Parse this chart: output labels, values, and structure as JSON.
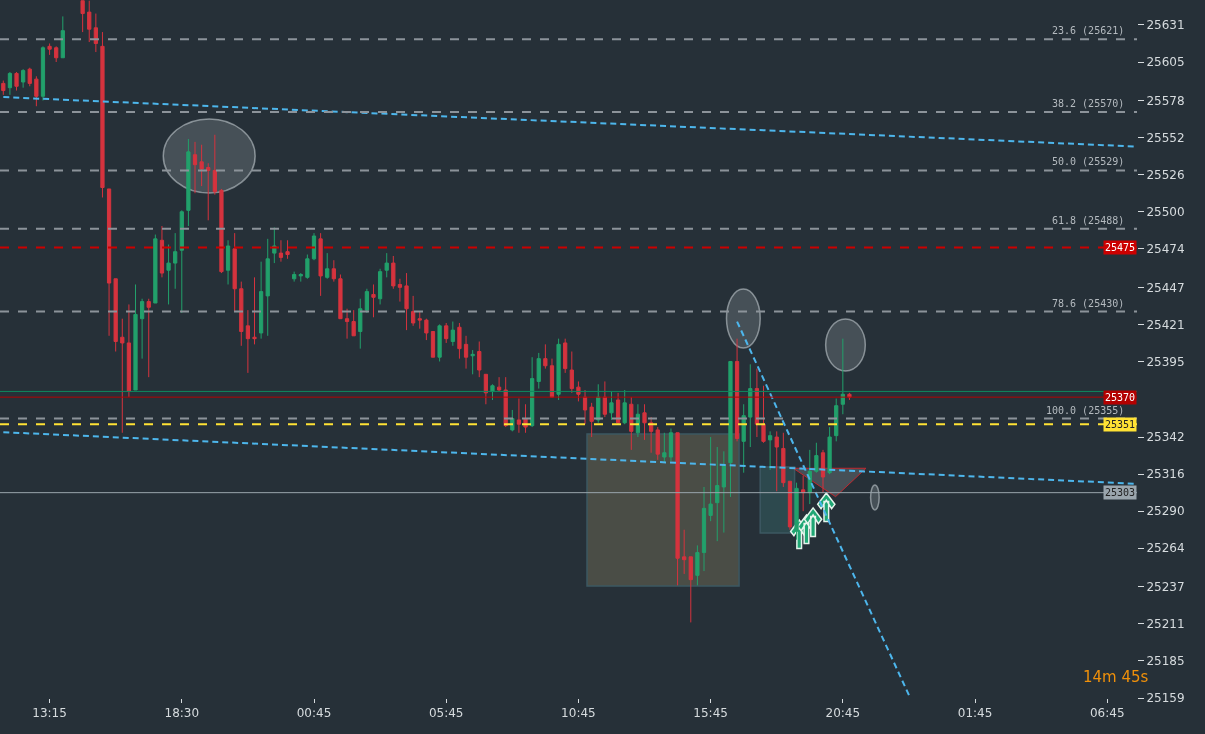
{
  "chart_data": {
    "type": "candlestick",
    "categories": [
      null,
      null,
      null,
      null,
      null,
      null,
      null,
      "13:15",
      null,
      null,
      null,
      null,
      null,
      null,
      null,
      null,
      null,
      null,
      null,
      null,
      null,
      null,
      null,
      null,
      null,
      null,
      null,
      "18:30",
      null,
      null,
      null,
      null,
      null,
      null,
      null,
      null,
      null,
      null,
      null,
      null,
      null,
      null,
      null,
      null,
      null,
      null,
      null,
      "00:45",
      null,
      null,
      null,
      null,
      null,
      null,
      null,
      null,
      null,
      null,
      null,
      null,
      null,
      null,
      null,
      null,
      null,
      null,
      null,
      "05:45",
      null,
      null,
      null,
      null,
      null,
      null,
      null,
      null,
      null,
      null,
      null,
      null,
      null,
      null,
      null,
      null,
      null,
      null,
      null,
      "10:45",
      null,
      null,
      null,
      null,
      null,
      null,
      null,
      null,
      null,
      null,
      null,
      null,
      null,
      null,
      null,
      null,
      null,
      null,
      null,
      "15:45",
      null,
      null,
      null,
      null,
      null,
      null,
      null,
      null,
      null,
      null,
      null,
      null,
      null,
      null,
      null,
      null,
      null,
      null,
      null,
      "20:45",
      null,
      null,
      null,
      null,
      null,
      null,
      null,
      null,
      null,
      null,
      null,
      null,
      null,
      null,
      null,
      null,
      null,
      null,
      null,
      "01:45",
      null,
      null,
      null,
      null,
      null,
      null,
      null,
      null,
      null,
      null,
      null,
      null,
      null,
      null,
      null,
      null,
      null,
      null,
      null,
      "06:45",
      null,
      null,
      null,
      null
    ],
    "ohlc": [
      [
        25590,
        25592,
        25582,
        25585
      ],
      [
        25587,
        25598,
        25582,
        25597
      ],
      [
        25597,
        25598,
        25585,
        25588
      ],
      [
        25591,
        25600,
        25587,
        25599
      ],
      [
        25600,
        25601,
        25588,
        25590
      ],
      [
        25593,
        25595,
        25574,
        25581
      ],
      [
        25581,
        25616,
        25578,
        25615
      ],
      [
        25616,
        25618,
        25610,
        25614
      ],
      [
        25615,
        25616,
        25605,
        25608
      ],
      [
        25608,
        25637,
        25608,
        25627
      ],
      null,
      null,
      [
        25648,
        25648,
        25626,
        25639
      ],
      [
        25640,
        25648,
        25619,
        25628
      ],
      [
        25629,
        25639,
        25612,
        25618
      ],
      [
        25616,
        25626,
        25510,
        25517
      ],
      [
        25516,
        25516,
        25413,
        25450
      ],
      [
        25453,
        25453,
        25402,
        25409
      ],
      [
        25412,
        25425,
        25345,
        25408
      ],
      [
        25408,
        25435,
        25370,
        25374
      ],
      [
        25375,
        25449,
        25375,
        25428
      ],
      [
        25425,
        25439,
        25397,
        25437
      ],
      [
        25437,
        25439,
        25384,
        25433
      ],
      [
        25436,
        25484,
        25436,
        25481
      ],
      [
        25480,
        25490,
        25454,
        25457
      ],
      [
        25459,
        25477,
        25435,
        25464
      ],
      [
        25464,
        25485,
        25446,
        25472
      ],
      [
        25473,
        25501,
        25429,
        25500
      ],
      [
        25501,
        25551,
        25490,
        25542
      ],
      [
        25540,
        25549,
        25513,
        25533
      ],
      [
        25535,
        25547,
        25518,
        25530
      ],
      [
        25531,
        25534,
        25494,
        25529
      ],
      [
        25529,
        25554,
        25512,
        25514
      ],
      [
        25515,
        25516,
        25457,
        25458
      ],
      [
        25459,
        25480,
        25449,
        25476
      ],
      [
        25474,
        25485,
        25430,
        25446
      ],
      [
        25446,
        25451,
        25406,
        25416
      ],
      [
        25420,
        25431,
        25387,
        25411
      ],
      [
        25412,
        25454,
        25407,
        25411
      ],
      [
        25415,
        25465,
        25411,
        25444
      ],
      [
        25441,
        25481,
        25413,
        25467
      ],
      [
        25471,
        25489,
        25464,
        25476
      ],
      [
        25471,
        25480,
        25465,
        25468
      ],
      [
        25472,
        25480,
        25467,
        25470
      ],
      [
        25453,
        25458,
        25451,
        25456
      ],
      [
        25455,
        25457,
        25451,
        25456
      ],
      [
        25454,
        25470,
        25453,
        25467
      ],
      [
        25467,
        25485,
        25466,
        25483
      ],
      [
        25481,
        25485,
        25441,
        25455
      ],
      [
        25454,
        25471,
        25453,
        25460
      ],
      [
        25460,
        25466,
        25451,
        25453
      ],
      [
        25453,
        25456,
        25425,
        25425
      ],
      [
        25425,
        25432,
        25411,
        25423
      ],
      [
        25423,
        25431,
        25413,
        25413
      ],
      [
        25416,
        25439,
        25404,
        25432
      ],
      [
        25431,
        25446,
        25429,
        25444
      ],
      [
        25442,
        25449,
        25426,
        25440
      ],
      [
        25439,
        25460,
        25435,
        25458
      ],
      [
        25459,
        25471,
        25454,
        25464
      ],
      [
        25464,
        25469,
        25446,
        25448
      ],
      [
        25449,
        25453,
        25437,
        25447
      ],
      [
        25448,
        25457,
        25417,
        25432
      ],
      [
        25430,
        25441,
        25420,
        25422
      ],
      [
        25425,
        25430,
        25418,
        25424
      ],
      [
        25424,
        25425,
        25410,
        25415
      ],
      [
        25416,
        25416,
        25398,
        25398
      ],
      [
        25398,
        25421,
        25395,
        25420
      ],
      [
        25420,
        25422,
        25408,
        25411
      ],
      [
        25409,
        25423,
        25406,
        25417
      ],
      [
        25419,
        25422,
        25397,
        25404
      ],
      [
        25407,
        25413,
        25390,
        25398
      ],
      [
        25399,
        25403,
        25386,
        25400
      ],
      [
        25402,
        25409,
        25384,
        25389
      ],
      [
        25386,
        25386,
        25365,
        25373
      ],
      [
        25374,
        25379,
        25368,
        25378
      ],
      [
        25377,
        25384,
        25374,
        25375
      ],
      [
        25375,
        25384,
        25349,
        25350
      ],
      [
        25347,
        25361,
        25346,
        25355
      ],
      [
        25354,
        25369,
        25345,
        25351
      ],
      [
        25355,
        25365,
        25345,
        25349
      ],
      [
        25350,
        25398,
        25349,
        25383
      ],
      [
        25381,
        25401,
        25376,
        25397
      ],
      [
        25397,
        25407,
        25390,
        25392
      ],
      [
        25392,
        25397,
        25370,
        25370
      ],
      [
        25372,
        25411,
        25368,
        25407
      ],
      [
        25408,
        25411,
        25387,
        25390
      ],
      [
        25389,
        25402,
        25373,
        25376
      ],
      [
        25377,
        25381,
        25367,
        25372
      ],
      [
        25370,
        25375,
        25351,
        25361
      ],
      [
        25363,
        25366,
        25342,
        25353
      ],
      [
        25354,
        25379,
        25352,
        25370
      ],
      [
        25370,
        25381,
        25356,
        25358
      ],
      [
        25359,
        25374,
        25354,
        25366
      ],
      [
        25368,
        25373,
        25351,
        25352
      ],
      [
        25352,
        25375,
        25351,
        25366
      ],
      [
        25365,
        25370,
        25333,
        25346
      ],
      [
        25345,
        25365,
        25342,
        25358
      ],
      [
        25359,
        25365,
        25340,
        25352
      ],
      [
        25352,
        25356,
        25331,
        25346
      ],
      [
        25347,
        25349,
        25326,
        25330
      ],
      [
        25328,
        25345,
        25324,
        25331
      ],
      [
        25328,
        25348,
        25325,
        25345
      ],
      [
        25345,
        25345,
        25238,
        25257
      ],
      [
        25258,
        25277,
        25246,
        25256
      ],
      [
        25258,
        25258,
        25212,
        25242
      ],
      [
        25245,
        25266,
        25238,
        25261
      ],
      [
        25261,
        25307,
        25248,
        25292
      ],
      [
        25287,
        25342,
        25283,
        25295
      ],
      [
        25296,
        25335,
        25269,
        25308
      ],
      [
        25307,
        25332,
        25275,
        25322
      ],
      [
        25324,
        25395,
        25300,
        25395
      ],
      [
        25395,
        25411,
        25339,
        25341
      ],
      [
        25339,
        25365,
        25317,
        25357
      ],
      [
        25356,
        25393,
        25335,
        25376
      ],
      [
        25376,
        25390,
        25342,
        25351
      ],
      [
        25351,
        25378,
        25338,
        25339
      ],
      [
        25340,
        25346,
        25319,
        25343
      ],
      [
        25342,
        25346,
        25304,
        25335
      ],
      [
        25334,
        25345,
        25307,
        25310
      ],
      [
        25311,
        25311,
        25277,
        25279
      ],
      [
        25276,
        25310,
        25270,
        25306
      ],
      [
        25305,
        25315,
        25290,
        25303
      ],
      [
        25303,
        25333,
        25295,
        25318
      ],
      [
        25318,
        25338,
        25317,
        25329
      ],
      [
        25331,
        25333,
        25303,
        25314
      ],
      [
        25317,
        25349,
        25316,
        25342
      ],
      [
        25343,
        25369,
        25339,
        25364
      ],
      [
        25365,
        25411,
        25358,
        25372
      ],
      [
        25372,
        25373,
        25368,
        25370
      ],
      null,
      null,
      null,
      null,
      null,
      null,
      null,
      null,
      null,
      null,
      null,
      null,
      null,
      null,
      null,
      null,
      null,
      null,
      null,
      null,
      null,
      null,
      null,
      null,
      null,
      null,
      null,
      null,
      null,
      null,
      null,
      null,
      null,
      null,
      null,
      null,
      null,
      null,
      null,
      null,
      null,
      null,
      null
    ],
    "colors": [
      "#d5333e",
      "#22a06b",
      "#d5333e",
      "#22a06b",
      "#d5333e",
      "#d5333e",
      "#22a06b",
      "#d5333e",
      "#d5333e",
      "#22a06b",
      null,
      null,
      "#d5333e",
      "#d5333e",
      "#d5333e",
      "#d5333e",
      "#d5333e",
      "#d5333e",
      "#d5333e",
      "#d5333e",
      "#22a06b",
      "#22a06b",
      "#d5333e",
      "#22a06b",
      "#d5333e",
      "#22a06b",
      "#22a06b",
      "#22a06b",
      "#22a06b",
      "#d5333e",
      "#d5333e",
      "#d5333e",
      "#d5333e",
      "#d5333e",
      "#22a06b",
      "#d5333e",
      "#d5333e",
      "#d5333e",
      "#d5333e",
      "#22a06b",
      "#22a06b",
      "#22a06b",
      "#d5333e",
      "#d5333e",
      "#22a06b",
      "#22a06b",
      "#22a06b",
      "#22a06b",
      "#d5333e",
      "#22a06b",
      "#d5333e",
      "#d5333e",
      "#d5333e",
      "#d5333e",
      "#22a06b",
      "#22a06b",
      "#d5333e",
      "#22a06b",
      "#22a06b",
      "#d5333e",
      "#d5333e",
      "#d5333e",
      "#d5333e",
      "#d5333e",
      "#d5333e",
      "#d5333e",
      "#22a06b",
      "#d5333e",
      "#22a06b",
      "#d5333e",
      "#d5333e",
      "#22a06b",
      "#d5333e",
      "#d5333e",
      "#22a06b",
      "#d5333e",
      "#d5333e",
      "#22a06b",
      "#d5333e",
      "#d5333e",
      "#22a06b",
      "#22a06b",
      "#d5333e",
      "#d5333e",
      "#22a06b",
      "#d5333e",
      "#d5333e",
      "#d5333e",
      "#d5333e",
      "#d5333e",
      "#22a06b",
      "#d5333e",
      "#22a06b",
      "#d5333e",
      "#22a06b",
      "#d5333e",
      "#22a06b",
      "#d5333e",
      "#d5333e",
      "#d5333e",
      "#22a06b",
      "#22a06b",
      "#d5333e",
      "#d5333e",
      "#d5333e",
      "#22a06b",
      "#22a06b",
      "#22a06b",
      "#22a06b",
      "#22a06b",
      "#22a06b",
      "#d5333e",
      "#22a06b",
      "#22a06b",
      "#d5333e",
      "#d5333e",
      "#22a06b",
      "#d5333e",
      "#d5333e",
      "#d5333e",
      "#22a06b",
      "#d5333e",
      "#22a06b",
      "#22a06b",
      "#d5333e",
      "#22a06b",
      "#22a06b",
      "#22a06b",
      "#d5333e",
      null,
      null,
      null,
      null,
      null,
      null,
      null,
      null,
      null,
      null,
      null,
      null,
      null,
      null,
      null,
      null,
      null,
      null,
      null,
      null,
      null,
      null,
      null,
      null,
      null,
      null,
      null,
      null,
      null,
      null,
      null,
      null,
      null,
      null,
      null,
      null,
      null,
      null,
      null,
      null,
      null,
      null,
      null
    ],
    "series": [
      {
        "type": "line",
        "color": "#4db6ec",
        "line_style": "dashed",
        "values": [
          25580.4,
          null,
          null,
          null,
          null,
          null,
          null,
          null,
          null,
          null,
          null,
          null,
          null,
          null,
          null,
          null,
          null,
          null,
          null,
          null,
          null,
          null,
          null,
          null,
          null,
          null,
          null,
          null,
          null,
          null,
          null,
          null,
          null,
          null,
          null,
          null,
          null,
          null,
          null,
          null,
          null,
          null,
          null,
          null,
          null,
          null,
          null,
          null,
          null,
          null,
          null,
          null,
          null,
          null,
          null,
          null,
          null,
          null,
          null,
          null,
          null,
          null,
          null,
          null,
          null,
          null,
          null,
          null,
          null,
          null,
          null,
          null,
          null,
          null,
          null,
          null,
          null,
          null,
          null,
          null,
          null,
          null,
          null,
          null,
          null,
          null,
          null,
          null,
          null,
          null,
          null,
          null,
          null,
          null,
          null,
          null,
          null,
          null,
          null,
          null,
          null,
          null,
          null,
          null,
          null,
          null,
          null,
          null,
          null,
          null,
          null,
          null,
          null,
          null,
          null,
          null,
          null,
          null,
          null,
          null,
          null,
          null,
          null,
          null,
          null,
          null,
          null,
          null,
          null,
          null,
          null,
          null,
          null,
          null,
          null,
          null,
          null,
          null,
          null,
          null,
          null,
          null,
          null,
          null,
          null,
          null,
          null,
          null,
          null,
          null,
          null,
          null,
          null,
          null,
          null,
          null,
          null,
          null,
          null,
          null,
          null,
          null,
          null,
          null,
          null,
          null,
          null,
          null,
          null,
          null,
          null,
          25545.8
        ]
      },
      {
        "type": "line",
        "color": "#4db6ec",
        "line_style": "dashed",
        "values": [
          25345.4,
          null,
          null,
          null,
          null,
          null,
          null,
          null,
          null,
          null,
          null,
          null,
          null,
          null,
          null,
          null,
          null,
          null,
          null,
          null,
          null,
          null,
          null,
          null,
          null,
          null,
          null,
          null,
          null,
          null,
          null,
          null,
          null,
          null,
          null,
          null,
          null,
          null,
          null,
          null,
          null,
          null,
          null,
          null,
          null,
          null,
          null,
          null,
          null,
          null,
          null,
          null,
          null,
          null,
          null,
          null,
          null,
          null,
          null,
          null,
          null,
          null,
          null,
          null,
          null,
          null,
          null,
          null,
          null,
          null,
          null,
          null,
          null,
          null,
          null,
          null,
          null,
          null,
          null,
          null,
          null,
          null,
          null,
          null,
          null,
          null,
          null,
          null,
          null,
          null,
          null,
          null,
          null,
          null,
          null,
          null,
          null,
          null,
          null,
          null,
          null,
          null,
          null,
          null,
          null,
          null,
          null,
          null,
          null,
          null,
          null,
          null,
          null,
          null,
          null,
          null,
          null,
          null,
          null,
          null,
          null,
          null,
          null,
          null,
          null,
          null,
          null,
          null,
          null,
          null,
          null,
          null,
          null,
          null,
          null,
          null,
          null,
          null,
          null,
          null,
          null,
          null,
          null,
          null,
          null,
          null,
          null,
          null,
          null,
          null,
          null,
          null,
          null,
          null,
          null,
          null,
          null,
          null,
          null,
          null,
          null,
          null,
          null,
          null,
          null,
          null,
          null,
          null,
          null,
          null,
          null,
          25309.3
        ]
      },
      {
        "type": "line",
        "color": "#4db6ec",
        "line_style": "dashed",
        "values": [
          null,
          null,
          null,
          null,
          null,
          null,
          null,
          null,
          null,
          null,
          null,
          null,
          null,
          null,
          null,
          null,
          null,
          null,
          null,
          null,
          null,
          null,
          null,
          null,
          null,
          null,
          null,
          null,
          null,
          null,
          null,
          null,
          null,
          null,
          null,
          null,
          null,
          null,
          null,
          null,
          null,
          null,
          null,
          null,
          null,
          null,
          null,
          null,
          null,
          null,
          null,
          null,
          null,
          null,
          null,
          null,
          null,
          null,
          null,
          null,
          null,
          null,
          null,
          null,
          null,
          null,
          null,
          null,
          null,
          null,
          null,
          null,
          null,
          null,
          null,
          null,
          null,
          null,
          null,
          null,
          null,
          null,
          null,
          null,
          null,
          null,
          null,
          null,
          null,
          null,
          null,
          null,
          null,
          null,
          null,
          null,
          null,
          null,
          null,
          null,
          null,
          null,
          null,
          null,
          null,
          null,
          null,
          null,
          null,
          null,
          null,
          25423,
          null,
          null,
          null,
          null,
          null,
          null,
          null,
          null,
          null,
          null,
          null,
          null,
          null,
          null,
          null,
          null,
          null,
          null,
          null,
          null,
          null,
          null,
          null,
          null,
          null,
          25161,
          null,
          null,
          null,
          null,
          null,
          null,
          null,
          null,
          null,
          null,
          null,
          null,
          null,
          null,
          null,
          null,
          null,
          null,
          null,
          null,
          null,
          null,
          null,
          null,
          null,
          null,
          null,
          null,
          null,
          null,
          null,
          null,
          null,
          null
        ]
      }
    ],
    "ref_lines": [
      {
        "axis": "y",
        "value": 25621,
        "label": "23.6 (25621)",
        "color": "#8c939a",
        "line_style": "dashed"
      },
      {
        "axis": "y",
        "value": 25570,
        "label": "38.2 (25570)",
        "color": "#8c939a",
        "line_style": "dashed"
      },
      {
        "axis": "y",
        "value": 25529,
        "label": "50.0 (25529)",
        "color": "#8c939a",
        "line_style": "dashed"
      },
      {
        "axis": "y",
        "value": 25488,
        "label": "61.8 (25488)",
        "color": "#8c939a",
        "line_style": "dashed"
      },
      {
        "axis": "y",
        "value": 25475,
        "label": "25475",
        "color": "#cc0000",
        "line_style": "dashed"
      },
      {
        "axis": "y",
        "value": 25430,
        "label": "78.6 (25430)",
        "color": "#8c939a",
        "line_style": "dashed"
      },
      {
        "axis": "y",
        "value": 25374,
        "label": null,
        "color": "#0e8a5f",
        "line_style": "solid"
      },
      {
        "axis": "y",
        "value": 25370,
        "label": "25370",
        "color": "#b30000",
        "line_style": "solid"
      },
      {
        "axis": "y",
        "value": 25355,
        "label": "100.0 (25355)",
        "color": "#8c939a",
        "line_style": "dashed"
      },
      {
        "axis": "y",
        "value": 25351,
        "label": "25351",
        "color": "#ffe234",
        "line_style": "dashed"
      },
      {
        "axis": "y",
        "value": 25303,
        "label": "25303",
        "color": "#9aa5ad",
        "line_style": "solid"
      }
    ],
    "annotations": [
      "14m 45s"
    ],
    "ylim": [
      25159,
      25648.5
    ],
    "yticks": [
      25631,
      25605,
      25578,
      25552,
      25526,
      25500,
      25474,
      25447,
      25421,
      25395,
      25342,
      25316,
      25290,
      25264,
      25237,
      25211,
      25185,
      25159
    ],
    "grid": false
  }
}
